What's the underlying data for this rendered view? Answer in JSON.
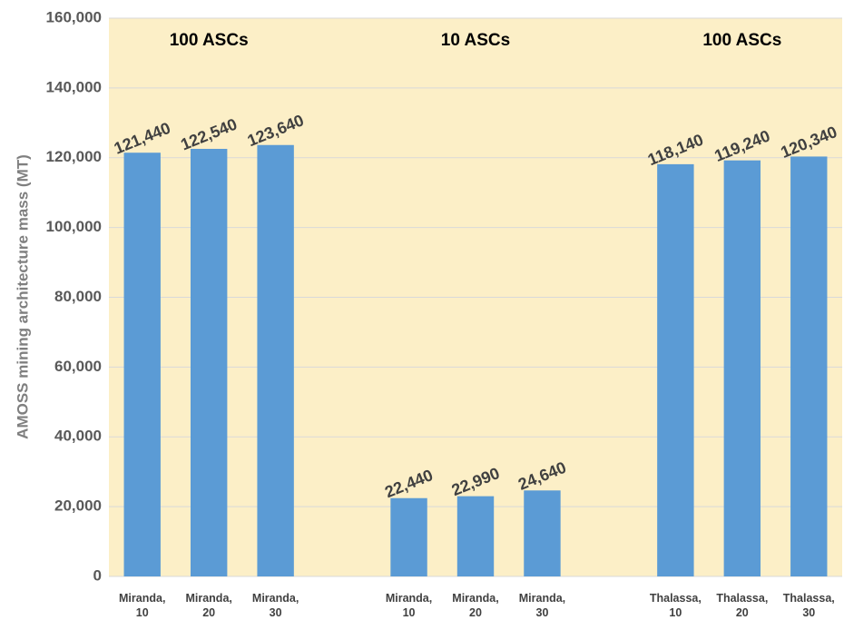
{
  "chart_data": {
    "type": "bar",
    "title": "",
    "xlabel": "",
    "ylabel": "AMOSS mining  architecture mass (MT)",
    "ylim": [
      0,
      160000
    ],
    "yticks": [
      "0",
      "20,000",
      "40,000",
      "60,000",
      "80,000",
      "100,000",
      "120,000",
      "140,000",
      "160,000"
    ],
    "grid": true,
    "legend": "none",
    "colors": {
      "bar": "#5b9bd5",
      "plot_background": "#fcefc7",
      "grid": "#d9d9d9"
    },
    "groups": [
      {
        "label": "100 ASCs",
        "categories": [
          [
            "Miranda,",
            "10"
          ],
          [
            "Miranda,",
            "20"
          ],
          [
            "Miranda,",
            "30"
          ]
        ],
        "values": [
          121440,
          122540,
          123640
        ],
        "value_labels": [
          "121,440",
          "122,540",
          "123,640"
        ]
      },
      {
        "label": "10 ASCs",
        "categories": [
          [
            "Miranda,",
            "10"
          ],
          [
            "Miranda,",
            "20"
          ],
          [
            "Miranda,",
            "30"
          ]
        ],
        "values": [
          22440,
          22990,
          24640
        ],
        "value_labels": [
          "22,440",
          "22,990",
          "24,640"
        ]
      },
      {
        "label": "100 ASCs",
        "categories": [
          [
            "Thalassa,",
            "10"
          ],
          [
            "Thalassa,",
            "20"
          ],
          [
            "Thalassa,",
            "30"
          ]
        ],
        "values": [
          118140,
          119240,
          120340
        ],
        "value_labels": [
          "118,140",
          "119,240",
          "120,340"
        ]
      }
    ]
  }
}
